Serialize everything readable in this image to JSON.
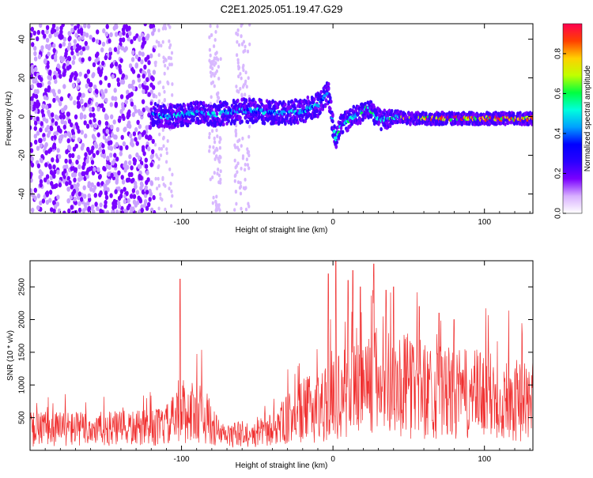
{
  "figure_title": "C2E1.2025.051.19.47.G29",
  "chart_data": [
    {
      "type": "heatmap",
      "title": "C2E1.2025.051.19.47.G29",
      "xlabel": "Height of straight line (km)",
      "ylabel": "Frequency (Hz)",
      "xlim": [
        -200,
        132
      ],
      "ylim": [
        -50,
        48
      ],
      "x_ticks": [
        -100,
        0,
        100
      ],
      "y_ticks": [
        -40,
        -20,
        0,
        20,
        40
      ],
      "x_tick_labels": [
        "-100",
        "0",
        "100"
      ],
      "y_tick_labels": [
        "-40",
        "-20",
        "0",
        "20",
        "40"
      ],
      "grid": false,
      "colorbar": {
        "label": "Normalized spectral amplitude",
        "range": [
          0,
          0.95
        ],
        "ticks": [
          0,
          0.2,
          0.4,
          0.6,
          0.8
        ],
        "tick_labels": [
          "0.0",
          "0.2",
          "0.4",
          "0.6",
          "0.8"
        ],
        "colormap": [
          "#ffffff",
          "#d8b0ff",
          "#7a00ff",
          "#2a00ff",
          "#0000ff",
          "#00a0ff",
          "#00ffdd",
          "#00ff40",
          "#c0ff00",
          "#ffd000",
          "#ff4000",
          "#ff0050"
        ]
      },
      "frequency_track": [
        [
          -120,
          1
        ],
        [
          -110,
          0
        ],
        [
          -100,
          1
        ],
        [
          -90,
          2
        ],
        [
          -80,
          1
        ],
        [
          -70,
          2
        ],
        [
          -60,
          3
        ],
        [
          -50,
          3
        ],
        [
          -40,
          2
        ],
        [
          -30,
          2
        ],
        [
          -20,
          3
        ],
        [
          -10,
          6
        ],
        [
          -3,
          12
        ],
        [
          0,
          -5
        ],
        [
          2,
          -12
        ],
        [
          5,
          -4
        ],
        [
          10,
          -2
        ],
        [
          15,
          1
        ],
        [
          20,
          2
        ],
        [
          23,
          5
        ],
        [
          27,
          1
        ],
        [
          32,
          -2
        ],
        [
          40,
          0
        ],
        [
          50,
          -1
        ],
        [
          60,
          -1
        ],
        [
          70,
          -1
        ],
        [
          80,
          -1
        ],
        [
          90,
          -1
        ],
        [
          100,
          -1
        ],
        [
          110,
          -1
        ],
        [
          120,
          -1
        ],
        [
          132,
          -1
        ]
      ]
    },
    {
      "type": "line",
      "xlabel": "Height of straight line (km)",
      "ylabel": "SNR (10 * v/v)",
      "xlim": [
        -200,
        132
      ],
      "ylim": [
        0,
        2900
      ],
      "x_ticks": [
        -100,
        0,
        100
      ],
      "y_ticks": [
        500,
        1000,
        1500,
        2000,
        2500
      ],
      "x_tick_labels": [
        "-100",
        "0",
        "100"
      ],
      "y_tick_labels": [
        "500",
        "1000",
        "1500",
        "2000",
        "2500"
      ],
      "line_color": "#f03030",
      "grid": false,
      "envelope": [
        [
          -200,
          380
        ],
        [
          -180,
          400
        ],
        [
          -160,
          380
        ],
        [
          -140,
          390
        ],
        [
          -120,
          400
        ],
        [
          -110,
          450
        ],
        [
          -100,
          650
        ],
        [
          -90,
          700
        ],
        [
          -85,
          650
        ],
        [
          -80,
          450
        ],
        [
          -75,
          300
        ],
        [
          -70,
          260
        ],
        [
          -60,
          300
        ],
        [
          -55,
          220
        ],
        [
          -50,
          300
        ],
        [
          -40,
          380
        ],
        [
          -30,
          550
        ],
        [
          -20,
          700
        ],
        [
          -10,
          800
        ],
        [
          0,
          900
        ],
        [
          10,
          1050
        ],
        [
          20,
          1200
        ],
        [
          30,
          1250
        ],
        [
          40,
          1200
        ],
        [
          50,
          1150
        ],
        [
          60,
          1100
        ],
        [
          70,
          1050
        ],
        [
          80,
          1000
        ],
        [
          90,
          1000
        ],
        [
          100,
          1000
        ],
        [
          110,
          950
        ],
        [
          120,
          900
        ],
        [
          132,
          900
        ]
      ],
      "peaks": [
        [
          -101,
          2620
        ],
        [
          -3,
          2700
        ],
        [
          2,
          2900
        ],
        [
          10,
          2600
        ],
        [
          13,
          2750
        ],
        [
          18,
          2500
        ],
        [
          27,
          2850
        ],
        [
          35,
          2450
        ],
        [
          40,
          2500
        ],
        [
          57,
          2200
        ],
        [
          70,
          2100
        ],
        [
          80,
          2000
        ]
      ]
    }
  ]
}
